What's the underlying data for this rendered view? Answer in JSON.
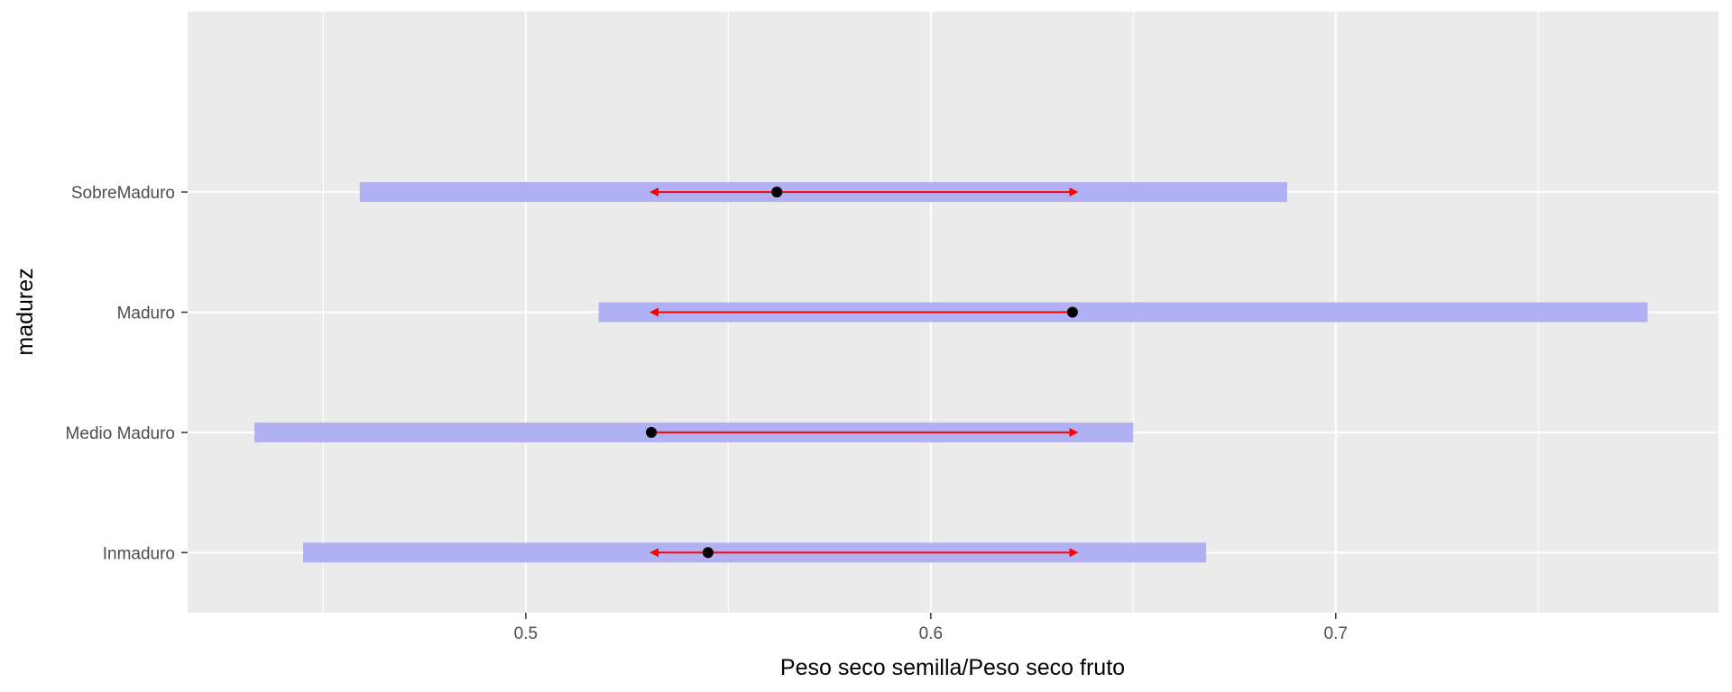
{
  "chart_data": {
    "type": "interval",
    "title": "",
    "xlabel": "Peso seco semilla/Peso seco fruto",
    "ylabel": "madurez",
    "xlim": [
      0.4165,
      0.7945
    ],
    "x_ticks": [
      0.5,
      0.6,
      0.7
    ],
    "x_tick_labels": [
      "0.5",
      "0.6",
      "0.7"
    ],
    "x_minor_grid": [
      0.45,
      0.55,
      0.65,
      0.75
    ],
    "grid": true,
    "legend": "none",
    "categories": [
      "Inmaduro",
      "Medio Maduro",
      "Maduro",
      "SobreMaduro"
    ],
    "points": [
      0.545,
      0.531,
      0.635,
      0.562
    ],
    "ranges": [
      {
        "low": 0.445,
        "high": 0.668
      },
      {
        "low": 0.433,
        "high": 0.65
      },
      {
        "low": 0.518,
        "high": 0.777
      },
      {
        "low": 0.459,
        "high": 0.688
      }
    ],
    "arrows": [
      {
        "from": 0.531,
        "to": 0.636,
        "both": true
      },
      {
        "from": 0.531,
        "to": 0.636,
        "both": false
      },
      {
        "from": 0.635,
        "to": 0.531,
        "both": false
      },
      {
        "from": 0.531,
        "to": 0.636,
        "both": true
      }
    ],
    "colors": {
      "panel": "#EBEBEB",
      "grid": "#FFFFFF",
      "range": "#B0B0F2",
      "arrow": "#FF0000",
      "point": "#000000"
    }
  }
}
